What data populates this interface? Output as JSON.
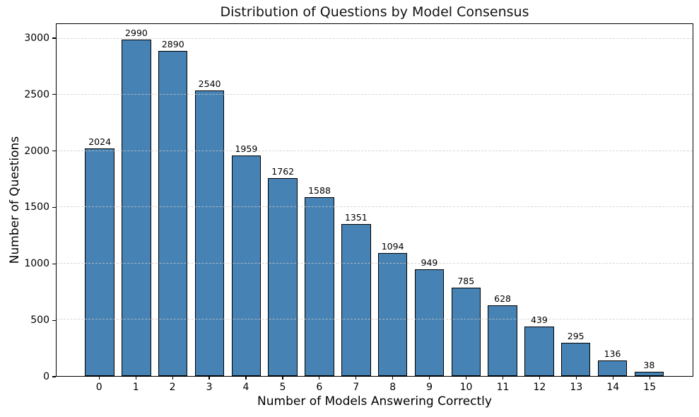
{
  "chart_data": {
    "type": "bar",
    "title": "Distribution of Questions by Model Consensus",
    "xlabel": "Number of Models Answering Correctly",
    "ylabel": "Number of Questions",
    "categories": [
      "0",
      "1",
      "2",
      "3",
      "4",
      "5",
      "6",
      "7",
      "8",
      "9",
      "10",
      "11",
      "12",
      "13",
      "14",
      "15"
    ],
    "values": [
      2024,
      2990,
      2890,
      2540,
      1959,
      1762,
      1588,
      1351,
      1094,
      949,
      785,
      628,
      439,
      295,
      136,
      38
    ],
    "yticks": [
      0,
      500,
      1000,
      1500,
      2000,
      2500,
      3000
    ],
    "ylim": [
      0,
      3131
    ],
    "xlim": [
      -1.18,
      16.19
    ],
    "bar_width_units": 0.8,
    "grid": "horizontal-dashed",
    "legend": "none",
    "colors": {
      "bar_fill": "#4682B4",
      "bar_edge": "#000000",
      "grid_line": "#c9c9c9",
      "text": "#000000",
      "background": "#ffffff"
    }
  }
}
